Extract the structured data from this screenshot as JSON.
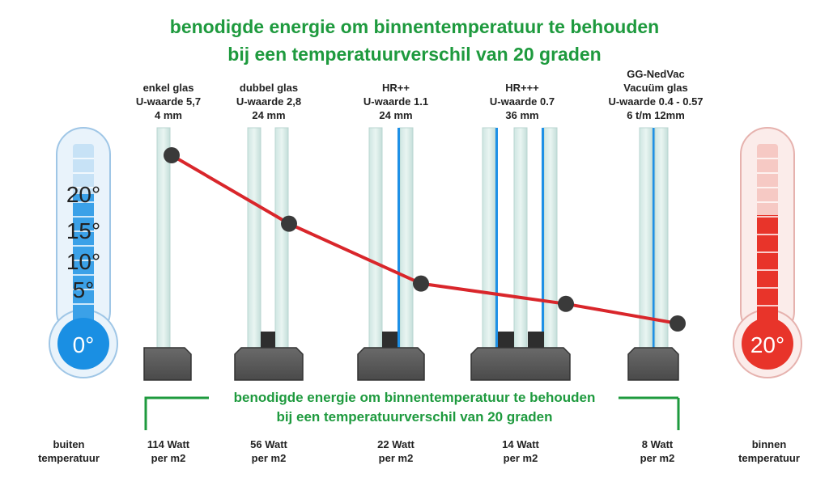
{
  "title": {
    "line1": "benodigde energie om binnentemperatuur te behouden",
    "line2": "bij een temperatuurverschil van 20 graden"
  },
  "subtitle": {
    "line1": "benodigde energie om binnentemperatuur te behouden",
    "line2": "bij een temperatuurverschil van 20 graden"
  },
  "thermometer_left": {
    "bulb_label": "0°",
    "scale": [
      "20°",
      "15°",
      "10°",
      "5°"
    ],
    "caption_line1": "buiten",
    "caption_line2": "temperatuur",
    "color": "#1a8fe3"
  },
  "thermometer_right": {
    "bulb_label": "20°",
    "caption_line1": "binnen",
    "caption_line2": "temperatuur",
    "color": "#e8342a"
  },
  "glass_types": [
    {
      "label1": "enkel glas",
      "label2": "U-waarde 5,7",
      "label3": "4 mm",
      "watt": "114 Watt",
      "unit": "per m2"
    },
    {
      "label1": "dubbel glas",
      "label2": "U-waarde 2,8",
      "label3": "24 mm",
      "watt": "56 Watt",
      "unit": "per m2"
    },
    {
      "label1": "HR++",
      "label2": "U-waarde 1.1",
      "label3": "24 mm",
      "watt": "22 Watt",
      "unit": "per m2"
    },
    {
      "label1": "HR+++",
      "label2": "U-waarde 0.7",
      "label3": "36 mm",
      "watt": "14 Watt",
      "unit": "per m2"
    },
    {
      "label0": "GG-NedVac",
      "label1": "Vacuüm glas",
      "label2": "U-waarde 0.4  - 0.57",
      "label3": "6 t/m 12mm",
      "watt": "8 Watt",
      "unit": "per m2"
    }
  ],
  "chart_data": {
    "type": "line",
    "x": [
      "enkel glas",
      "dubbel glas",
      "HR++",
      "HR+++",
      "GG-NedVac Vacuüm glas"
    ],
    "values": [
      114,
      56,
      22,
      14,
      8
    ],
    "line_color": "#d9262b"
  }
}
